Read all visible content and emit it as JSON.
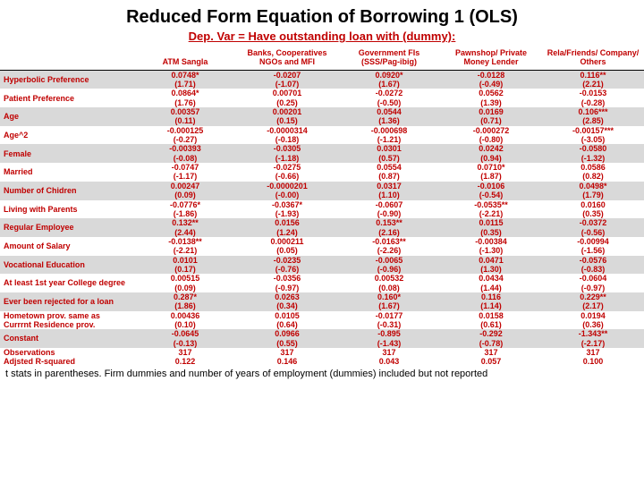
{
  "title": "Reduced Form Equation of Borrowing 1 (OLS)",
  "subtitle": "Dep. Var = Have outstanding loan with (dummy):",
  "columns": [
    "",
    "ATM Sangla",
    "Banks, Cooperatives NGOs and MFI",
    "Government FIs (SSS/Pag-ibig)",
    "Pawnshop/ Private Money Lender",
    "Rela/Friends/ Company/ Others"
  ],
  "rows": [
    {
      "label": "Hyperbolic Preference",
      "shaded": true,
      "v": [
        "0.0748*",
        "-0.0207",
        "0.0920*",
        "-0.0128",
        "0.116**"
      ],
      "t": [
        "(1.71)",
        "(-1.07)",
        "(1.67)",
        "(-0.49)",
        "(2.21)"
      ]
    },
    {
      "label": "Patient Preference",
      "shaded": false,
      "v": [
        "0.0864*",
        "0.00701",
        "-0.0272",
        "0.0562",
        "-0.0153"
      ],
      "t": [
        "(1.76)",
        "(0.25)",
        "(-0.50)",
        "(1.39)",
        "(-0.28)"
      ]
    },
    {
      "label": "Age",
      "shaded": true,
      "v": [
        "0.00357",
        "0.00201",
        "0.0544",
        "0.0169",
        "0.106***"
      ],
      "t": [
        "(0.11)",
        "(0.15)",
        "(1.36)",
        "(0.71)",
        "(2.85)"
      ]
    },
    {
      "label": "Age^2",
      "shaded": false,
      "v": [
        "-0.000125",
        "-0.0000314",
        "-0.000698",
        "-0.000272",
        "-0.00157***"
      ],
      "t": [
        "(-0.27)",
        "(-0.18)",
        "(-1.21)",
        "(-0.80)",
        "(-3.05)"
      ]
    },
    {
      "label": "Female",
      "shaded": true,
      "v": [
        "-0.00393",
        "-0.0305",
        "0.0301",
        "0.0242",
        "-0.0580"
      ],
      "t": [
        "(-0.08)",
        "(-1.18)",
        "(0.57)",
        "(0.94)",
        "(-1.32)"
      ]
    },
    {
      "label": "Married",
      "shaded": false,
      "v": [
        "-0.0747",
        "-0.0275",
        "0.0554",
        "0.0710*",
        "0.0586"
      ],
      "t": [
        "(-1.17)",
        "(-0.66)",
        "(0.87)",
        "(1.87)",
        "(0.82)"
      ]
    },
    {
      "label": "Number of Chidren",
      "shaded": true,
      "v": [
        "0.00247",
        "-0.0000201",
        "0.0317",
        "-0.0106",
        "0.0498*"
      ],
      "t": [
        "(0.09)",
        "(-0.00)",
        "(1.10)",
        "(-0.54)",
        "(1.79)"
      ]
    },
    {
      "label": "Living with Parents",
      "shaded": false,
      "v": [
        "-0.0776*",
        "-0.0367*",
        "-0.0607",
        "-0.0535**",
        "0.0160"
      ],
      "t": [
        "(-1.86)",
        "(-1.93)",
        "(-0.90)",
        "(-2.21)",
        "(0.35)"
      ]
    },
    {
      "label": "Regular Employee",
      "shaded": true,
      "v": [
        "0.132**",
        "0.0156",
        "0.153**",
        "0.0115",
        "-0.0372"
      ],
      "t": [
        "(2.44)",
        "(1.24)",
        "(2.16)",
        "(0.35)",
        "(-0.56)"
      ]
    },
    {
      "label": "Amount of Salary",
      "shaded": false,
      "v": [
        "-0.0138**",
        "0.000211",
        "-0.0163**",
        "-0.00384",
        "-0.00994"
      ],
      "t": [
        "(-2.21)",
        "(0.05)",
        "(-2.26)",
        "(-1.30)",
        "(-1.56)"
      ]
    },
    {
      "label": "Vocational Education",
      "shaded": true,
      "v": [
        "0.0101",
        "-0.0235",
        "-0.0065",
        "0.0471",
        "-0.0576"
      ],
      "t": [
        "(0.17)",
        "(-0.76)",
        "(-0.96)",
        "(1.30)",
        "(-0.83)"
      ]
    },
    {
      "label": "At least 1st year College degree",
      "shaded": false,
      "v": [
        "0.00515",
        "-0.0356",
        "0.00532",
        "0.0434",
        "-0.0604"
      ],
      "t": [
        "(0.09)",
        "(-0.97)",
        "(0.08)",
        "(1.44)",
        "(-0.97)"
      ]
    },
    {
      "label": "Ever been rejected for a loan",
      "shaded": true,
      "v": [
        "0.287*",
        "0.0263",
        "0.160*",
        "0.116",
        "0.229**"
      ],
      "t": [
        "(1.86)",
        "(0.34)",
        "(1.67)",
        "(1.14)",
        "(2.17)"
      ]
    },
    {
      "label": "Hometown prov. same as",
      "shaded": false,
      "v": [
        "0.00436",
        "0.0105",
        "-0.0177",
        "0.0158",
        "0.0194"
      ],
      "t": [
        "",
        "",
        "",
        "",
        ""
      ]
    },
    {
      "label": "Currrnt Residence prov.",
      "shaded": false,
      "v": [
        "(0.10)",
        "(0.64)",
        "(-0.31)",
        "(0.61)",
        "(0.36)"
      ],
      "t": [
        "",
        "",
        "",
        "",
        ""
      ]
    },
    {
      "label": "Constant",
      "shaded": true,
      "v": [
        "-0.0645",
        "0.0966",
        "-0.895",
        "-0.292",
        "-1.343**"
      ],
      "t": [
        "(-0.13)",
        "(0.55)",
        "(-1.43)",
        "(-0.78)",
        "(-2.17)"
      ]
    },
    {
      "label": "Observations",
      "shaded": false,
      "v": [
        "317",
        "317",
        "317",
        "317",
        "317"
      ],
      "t": [
        "",
        "",
        "",
        "",
        ""
      ]
    },
    {
      "label": "Adjsted R-squared",
      "shaded": false,
      "v": [
        "0.122",
        "0.146",
        "0.043",
        "0.057",
        "0.100"
      ],
      "t": [
        "",
        "",
        "",
        "",
        ""
      ]
    }
  ],
  "footnote": "t stats in parentheses. Firm dummies and number of years of employment (dummies) included but not reported"
}
